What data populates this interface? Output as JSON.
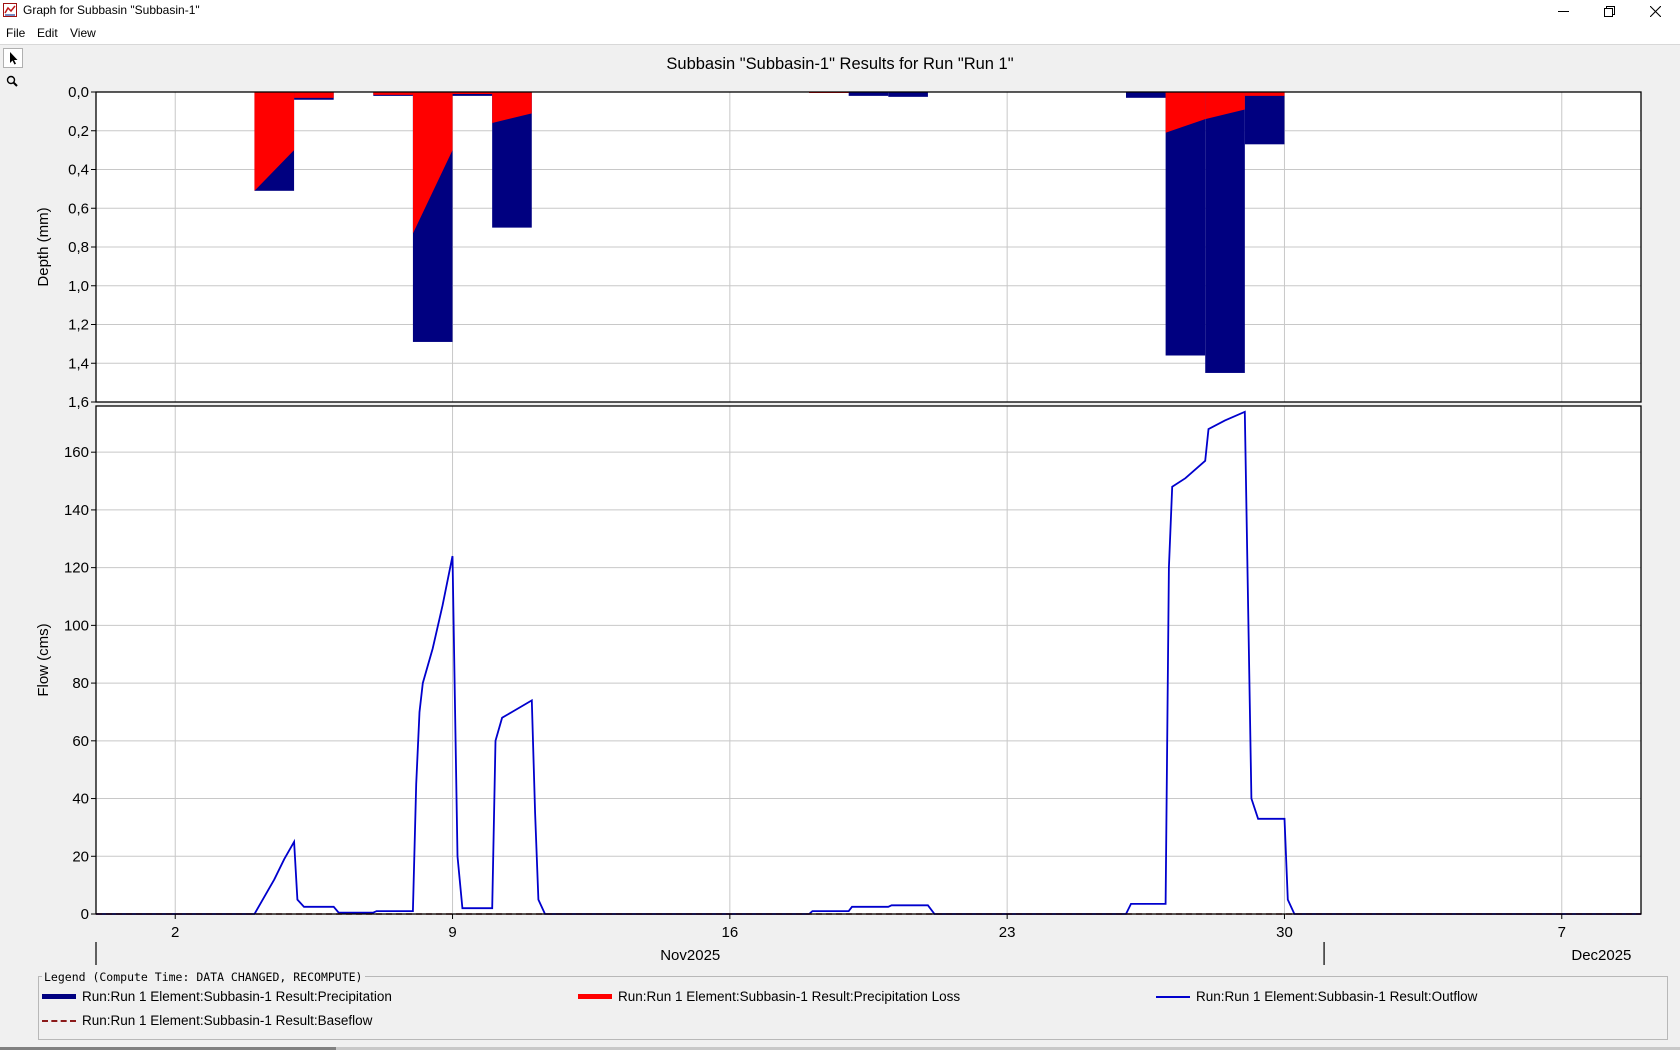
{
  "window": {
    "title": "Graph for Subbasin \"Subbasin-1\"",
    "icon": "hec-graph-icon",
    "controls": [
      "minimize-icon",
      "restore-icon",
      "close-icon"
    ]
  },
  "menu": {
    "file": "File",
    "edit": "Edit",
    "view": "View"
  },
  "toolbox": {
    "tools": [
      "pointer-icon",
      "zoom-icon"
    ]
  },
  "chart_data": {
    "title": "Subbasin \"Subbasin-1\" Results for Run \"Run 1\"",
    "x_axis": {
      "type": "date",
      "range": [
        "2025-10-31",
        "2025-12-09"
      ],
      "ticks": [
        {
          "date": "2025-11-02",
          "label": "2"
        },
        {
          "date": "2025-11-09",
          "label": "9"
        },
        {
          "date": "2025-11-16",
          "label": "16"
        },
        {
          "date": "2025-11-23",
          "label": "23"
        },
        {
          "date": "2025-11-30",
          "label": "30"
        },
        {
          "date": "2025-12-07",
          "label": "7"
        }
      ],
      "month_labels": [
        {
          "label": "Nov2025",
          "date": "2025-11-15"
        },
        {
          "label": "Dec2025",
          "date": "2025-12-08"
        }
      ],
      "grid": true
    },
    "panels": [
      {
        "name": "depth",
        "type": "bar",
        "ylabel": "Depth (mm)",
        "ylim": [
          0,
          1.6
        ],
        "inverted": true,
        "ytick_labels": [
          "0,0",
          "0,2",
          "0,4",
          "0,6",
          "0,8",
          "1,0",
          "1,2",
          "1,4",
          "1,6"
        ],
        "ytick_values": [
          0,
          0.2,
          0.4,
          0.6,
          0.8,
          1.0,
          1.2,
          1.4,
          1.6
        ],
        "series": [
          {
            "name": "Run:Run 1 Element:Subbasin-1 Result:Precipitation",
            "color": "#000080",
            "bars": [
              {
                "start": "2025-11-04",
                "end": "2025-11-05",
                "value": 0.51
              },
              {
                "start": "2025-11-05",
                "end": "2025-11-06",
                "value": 0.04
              },
              {
                "start": "2025-11-07",
                "end": "2025-11-08",
                "value": 0.02
              },
              {
                "start": "2025-11-08",
                "end": "2025-11-09",
                "value": 1.29
              },
              {
                "start": "2025-11-09",
                "end": "2025-11-10",
                "value": 0.02
              },
              {
                "start": "2025-11-10",
                "end": "2025-11-11",
                "value": 0.7
              },
              {
                "start": "2025-11-18",
                "end": "2025-11-19",
                "value": 0.005
              },
              {
                "start": "2025-11-19",
                "end": "2025-11-20",
                "value": 0.02
              },
              {
                "start": "2025-11-20",
                "end": "2025-11-21",
                "value": 0.025
              },
              {
                "start": "2025-11-26",
                "end": "2025-11-27",
                "value": 0.03
              },
              {
                "start": "2025-11-27",
                "end": "2025-11-28",
                "value": 1.36
              },
              {
                "start": "2025-11-28",
                "end": "2025-11-29",
                "value": 1.45
              },
              {
                "start": "2025-11-29",
                "end": "2025-11-30",
                "value": 0.27
              }
            ]
          },
          {
            "name": "Run:Run 1 Element:Subbasin-1 Result:Precipitation Loss",
            "color": "#ff0000",
            "bars": [
              {
                "start": "2025-11-04",
                "end": "2025-11-05",
                "loss_from": 0.51,
                "loss_to": 0.3
              },
              {
                "start": "2025-11-05",
                "end": "2025-11-06",
                "loss_from": 0.03,
                "loss_to": 0.03
              },
              {
                "start": "2025-11-07",
                "end": "2025-11-08",
                "loss_from": 0.015,
                "loss_to": 0.015
              },
              {
                "start": "2025-11-08",
                "end": "2025-11-09",
                "loss_from": 0.73,
                "loss_to": 0.3
              },
              {
                "start": "2025-11-09",
                "end": "2025-11-10",
                "loss_from": 0.01,
                "loss_to": 0.01
              },
              {
                "start": "2025-11-10",
                "end": "2025-11-11",
                "loss_from": 0.16,
                "loss_to": 0.11
              },
              {
                "start": "2025-11-18",
                "end": "2025-11-19",
                "loss_from": 0.005,
                "loss_to": 0.005
              },
              {
                "start": "2025-11-27",
                "end": "2025-11-28",
                "loss_from": 0.21,
                "loss_to": 0.14
              },
              {
                "start": "2025-11-28",
                "end": "2025-11-29",
                "loss_from": 0.14,
                "loss_to": 0.09
              },
              {
                "start": "2025-11-29",
                "end": "2025-11-30",
                "loss_from": 0.02,
                "loss_to": 0.02
              }
            ]
          }
        ]
      },
      {
        "name": "flow",
        "type": "line",
        "ylabel": "Flow (cms)",
        "ylim": [
          0,
          176
        ],
        "yticks": [
          0,
          20,
          40,
          60,
          80,
          100,
          120,
          140,
          160
        ],
        "series": [
          {
            "name": "Run:Run 1 Element:Subbasin-1 Result:Outflow",
            "color": "#0000cd",
            "style": "solid",
            "points": [
              [
                "2025-10-31T00:00",
                0
              ],
              [
                "2025-11-04T00:00",
                0
              ],
              [
                "2025-11-04T06:00",
                6
              ],
              [
                "2025-11-04T12:00",
                12
              ],
              [
                "2025-11-04T18:00",
                19
              ],
              [
                "2025-11-05T00:00",
                25
              ],
              [
                "2025-11-05T02:00",
                5
              ],
              [
                "2025-11-05T06:00",
                2.5
              ],
              [
                "2025-11-06T00:00",
                2.5
              ],
              [
                "2025-11-06T03:00",
                0.5
              ],
              [
                "2025-11-07T00:00",
                0.5
              ],
              [
                "2025-11-07T02:00",
                1
              ],
              [
                "2025-11-08T00:00",
                1
              ],
              [
                "2025-11-08T02:00",
                45
              ],
              [
                "2025-11-08T04:00",
                70
              ],
              [
                "2025-11-08T06:00",
                80
              ],
              [
                "2025-11-08T12:00",
                92
              ],
              [
                "2025-11-08T18:00",
                107
              ],
              [
                "2025-11-09T00:00",
                124
              ],
              [
                "2025-11-09T03:00",
                20
              ],
              [
                "2025-11-09T06:00",
                2
              ],
              [
                "2025-11-10T00:00",
                2
              ],
              [
                "2025-11-10T02:00",
                60
              ],
              [
                "2025-11-10T06:00",
                68
              ],
              [
                "2025-11-10T12:00",
                70
              ],
              [
                "2025-11-11T00:00",
                74
              ],
              [
                "2025-11-11T02:00",
                35
              ],
              [
                "2025-11-11T04:00",
                5
              ],
              [
                "2025-11-11T08:00",
                0
              ],
              [
                "2025-11-18T00:00",
                0
              ],
              [
                "2025-11-18T02:00",
                1
              ],
              [
                "2025-11-19T00:00",
                1
              ],
              [
                "2025-11-19T02:00",
                2.5
              ],
              [
                "2025-11-20T00:00",
                2.5
              ],
              [
                "2025-11-20T02:00",
                3
              ],
              [
                "2025-11-21T00:00",
                3
              ],
              [
                "2025-11-21T04:00",
                0
              ],
              [
                "2025-11-26T00:00",
                0
              ],
              [
                "2025-11-26T03:00",
                3.5
              ],
              [
                "2025-11-27T00:00",
                3.5
              ],
              [
                "2025-11-27T02:00",
                120
              ],
              [
                "2025-11-27T04:00",
                148
              ],
              [
                "2025-11-27T12:00",
                151
              ],
              [
                "2025-11-28T00:00",
                157
              ],
              [
                "2025-11-28T02:00",
                168
              ],
              [
                "2025-11-28T12:00",
                171
              ],
              [
                "2025-11-29T00:00",
                174
              ],
              [
                "2025-11-29T04:00",
                40
              ],
              [
                "2025-11-29T08:00",
                33
              ],
              [
                "2025-11-30T00:00",
                33
              ],
              [
                "2025-11-30T02:00",
                5
              ],
              [
                "2025-11-30T06:00",
                0
              ],
              [
                "2025-12-09T00:00",
                0
              ]
            ]
          },
          {
            "name": "Run:Run 1 Element:Subbasin-1 Result:Baseflow",
            "color": "#8b1a1a",
            "style": "dashed",
            "points": [
              [
                "2025-10-31T00:00",
                0
              ],
              [
                "2025-12-09T00:00",
                0
              ]
            ]
          }
        ]
      }
    ],
    "legend": {
      "caption": "Legend (Compute Time: DATA CHANGED, RECOMPUTE)",
      "position": "bottom",
      "entries": [
        {
          "label": "Run:Run 1 Element:Subbasin-1 Result:Precipitation",
          "color": "#000080",
          "style": "thick"
        },
        {
          "label": "Run:Run 1 Element:Subbasin-1 Result:Precipitation Loss",
          "color": "#ff0000",
          "style": "thick"
        },
        {
          "label": "Run:Run 1 Element:Subbasin-1 Result:Outflow",
          "color": "#0000cd",
          "style": "solid"
        },
        {
          "label": "Run:Run 1 Element:Subbasin-1 Result:Baseflow",
          "color": "#8b1a1a",
          "style": "dashed"
        }
      ]
    }
  }
}
